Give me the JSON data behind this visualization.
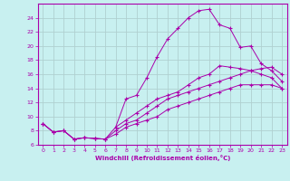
{
  "xlabel": "Windchill (Refroidissement éolien,°C)",
  "background_color": "#c8f0f0",
  "grid_color": "#b0d0d0",
  "line_color": "#aa00aa",
  "xlim": [
    -0.5,
    23.5
  ],
  "ylim": [
    6,
    26
  ],
  "xticks": [
    0,
    1,
    2,
    3,
    4,
    5,
    6,
    7,
    8,
    9,
    10,
    11,
    12,
    13,
    14,
    15,
    16,
    17,
    18,
    19,
    20,
    21,
    22,
    23
  ],
  "yticks": [
    6,
    8,
    10,
    12,
    14,
    16,
    18,
    20,
    22,
    24
  ],
  "line1_x": [
    0,
    1,
    2,
    3,
    4,
    5,
    6,
    7,
    8,
    9,
    10,
    11,
    12,
    13,
    14,
    15,
    16,
    17,
    18,
    19,
    20,
    21,
    22,
    23
  ],
  "line1_y": [
    9.0,
    7.8,
    8.0,
    6.8,
    7.0,
    6.9,
    6.8,
    8.5,
    12.5,
    13.0,
    15.5,
    18.5,
    21.0,
    22.5,
    24.0,
    25.0,
    25.2,
    23.0,
    22.5,
    19.8,
    20.0,
    17.5,
    16.5,
    15.0
  ],
  "line2_x": [
    0,
    1,
    2,
    3,
    4,
    5,
    6,
    7,
    8,
    9,
    10,
    11,
    12,
    13,
    14,
    15,
    16,
    17,
    18,
    19,
    20,
    21,
    22,
    23
  ],
  "line2_y": [
    9.0,
    7.8,
    8.0,
    6.8,
    7.0,
    6.9,
    6.8,
    8.0,
    9.0,
    9.5,
    10.5,
    11.5,
    12.5,
    13.0,
    13.5,
    14.0,
    14.5,
    15.0,
    15.5,
    16.0,
    16.5,
    16.8,
    17.0,
    16.0
  ],
  "line3_x": [
    0,
    1,
    2,
    3,
    4,
    5,
    6,
    7,
    8,
    9,
    10,
    11,
    12,
    13,
    14,
    15,
    16,
    17,
    18,
    19,
    20,
    21,
    22,
    23
  ],
  "line3_y": [
    9.0,
    7.8,
    8.0,
    6.8,
    7.0,
    6.9,
    6.8,
    7.5,
    8.5,
    9.0,
    9.5,
    10.0,
    11.0,
    11.5,
    12.0,
    12.5,
    13.0,
    13.5,
    14.0,
    14.5,
    14.5,
    14.5,
    14.5,
    14.0
  ],
  "line4_x": [
    7,
    8,
    9,
    10,
    11,
    12,
    13,
    14,
    15,
    16,
    17,
    18,
    19,
    20,
    21,
    22,
    23
  ],
  "line4_y": [
    8.5,
    9.5,
    10.5,
    11.5,
    12.5,
    13.0,
    13.5,
    14.5,
    15.5,
    16.0,
    17.2,
    17.0,
    16.8,
    16.5,
    16.0,
    15.5,
    14.0
  ]
}
